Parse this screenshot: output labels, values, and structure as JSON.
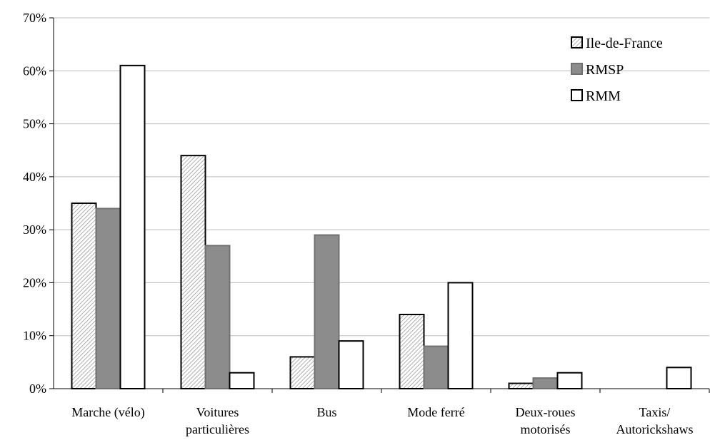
{
  "chart_data": {
    "type": "bar",
    "categories": [
      [
        "Marche (vélo)"
      ],
      [
        "Voitures",
        "particulières"
      ],
      [
        "Bus"
      ],
      [
        "Mode ferré"
      ],
      [
        "Deux-roues",
        "motorisés"
      ],
      [
        "Taxis/",
        "Autorickshaws"
      ]
    ],
    "series": [
      {
        "name": "Ile-de-France",
        "values": [
          35,
          44,
          6,
          14,
          1,
          null
        ],
        "style": "hatched"
      },
      {
        "name": "RMSP",
        "values": [
          34,
          27,
          29,
          8,
          2,
          null
        ],
        "style": "gray",
        "color": "#8c8c8c"
      },
      {
        "name": "RMM",
        "values": [
          61,
          3,
          9,
          20,
          3,
          4
        ],
        "style": "white",
        "color": "#ffffff"
      }
    ],
    "ylim": [
      0,
      70
    ],
    "yticks": [
      0,
      10,
      20,
      30,
      40,
      50,
      60,
      70
    ],
    "ytick_labels": [
      "0%",
      "10%",
      "20%",
      "30%",
      "40%",
      "50%",
      "60%",
      "70%"
    ],
    "grid": true,
    "legend_position": "top-right",
    "title": "",
    "xlabel": "",
    "ylabel": ""
  }
}
